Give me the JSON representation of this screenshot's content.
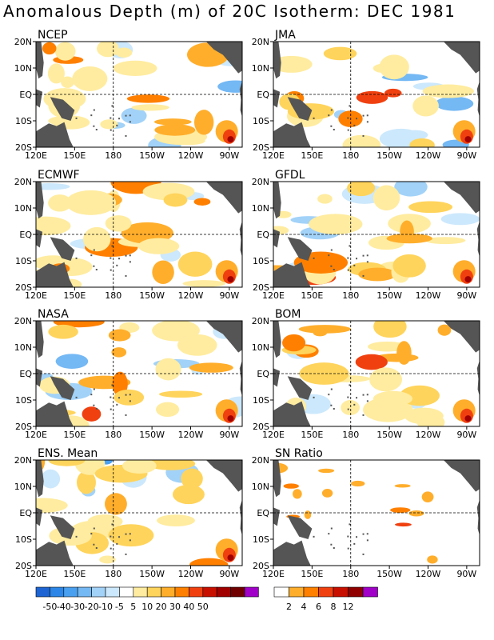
{
  "title": "Anomalous Depth (m) of 20C Isotherm: DEC 1981",
  "panels": [
    {
      "id": "ncep",
      "label": "NCEP",
      "warm_level": 0.62,
      "cool_level": 0.35
    },
    {
      "id": "jma",
      "label": "JMA",
      "warm_level": 0.35,
      "cool_level": 0.45
    },
    {
      "id": "ecmwf",
      "label": "ECMWF",
      "warm_level": 0.7,
      "cool_level": 0.2
    },
    {
      "id": "gfdl",
      "label": "GFDL",
      "warm_level": 0.65,
      "cool_level": 0.4
    },
    {
      "id": "nasa",
      "label": "NASA",
      "warm_level": 0.45,
      "cool_level": 0.45
    },
    {
      "id": "bom",
      "label": "BOM",
      "warm_level": 0.6,
      "cool_level": 0.2
    },
    {
      "id": "ens-mean",
      "label": "ENS. Mean",
      "warm_level": 0.55,
      "cool_level": 0.25
    },
    {
      "id": "sn-ratio",
      "label": "SN Ratio",
      "warm_level": 0.3,
      "cool_level": 0.0
    }
  ],
  "axes": {
    "lat_labels": [
      "20N",
      "10N",
      "EQ",
      "10S",
      "20S"
    ],
    "lon_labels": [
      "120E",
      "150E",
      "180",
      "150W",
      "120W",
      "90W"
    ]
  },
  "legend_anomaly": {
    "colors": [
      "#1e64d2",
      "#2c86e8",
      "#4aa0f0",
      "#74b8f4",
      "#a2d2f8",
      "#cce8fc",
      "#ffffff",
      "#ffeca0",
      "#ffd45c",
      "#ffae2c",
      "#ff8000",
      "#f04010",
      "#c81000",
      "#a00000",
      "#700000",
      "#a000c8"
    ],
    "labels": [
      "-50",
      "-40",
      "-30",
      "-20",
      "-10",
      "-5",
      "5",
      "10",
      "20",
      "30",
      "40",
      "50"
    ]
  },
  "legend_ratio": {
    "colors": [
      "#ffffff",
      "#ffae2c",
      "#ff8000",
      "#f04010",
      "#c81000",
      "#900000",
      "#a000c8"
    ],
    "labels": [
      "2",
      "4",
      "6",
      "8",
      "12"
    ]
  },
  "colors": {
    "land": "#555555",
    "ocean": "#ffffff"
  }
}
